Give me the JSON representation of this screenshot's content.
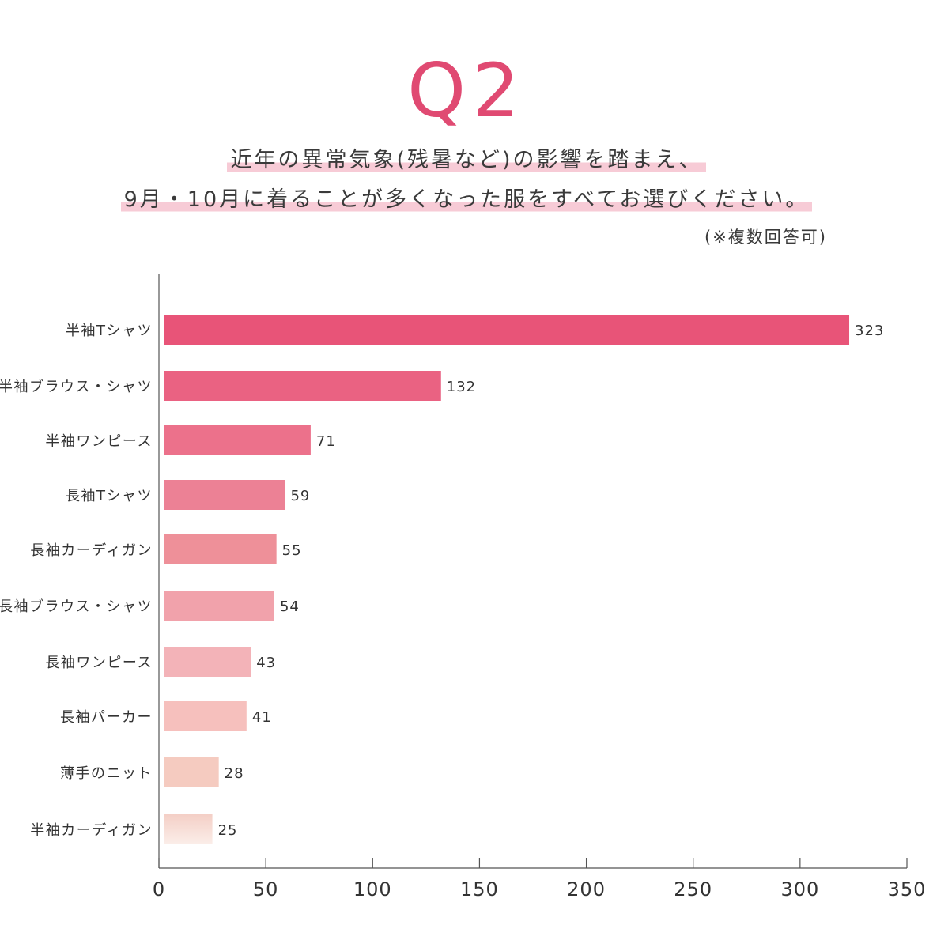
{
  "header": {
    "q_number": "Q2",
    "question_line1": "近年の異常気象(残暑など)の影響を踏まえ、",
    "question_line2": "9月・10月に着ることが多くなった服をすべてお選びください。",
    "note": "(※複数回答可)"
  },
  "chart_data": {
    "type": "bar",
    "orientation": "horizontal",
    "categories": [
      "半袖Tシャツ",
      "半袖ブラウス・シャツ",
      "半袖ワンピース",
      "長袖Tシャツ",
      "長袖カーディガン",
      "長袖ブラウス・シャツ",
      "長袖ワンピース",
      "長袖パーカー",
      "薄手のニット",
      "半袖カーディガン"
    ],
    "values": [
      323,
      132,
      71,
      59,
      55,
      54,
      43,
      41,
      28,
      25
    ],
    "colors": [
      "#e85478",
      "#ea6282",
      "#ec718b",
      "#ec8195",
      "#ee9099",
      "#f1a2ab",
      "#f3b3b8",
      "#f6c0bd",
      "#f5cbc0",
      "#f6d8cf"
    ],
    "xlim": [
      0,
      350
    ],
    "xticks": [
      0,
      50,
      100,
      150,
      200,
      250,
      300,
      350
    ],
    "grid": false
  }
}
